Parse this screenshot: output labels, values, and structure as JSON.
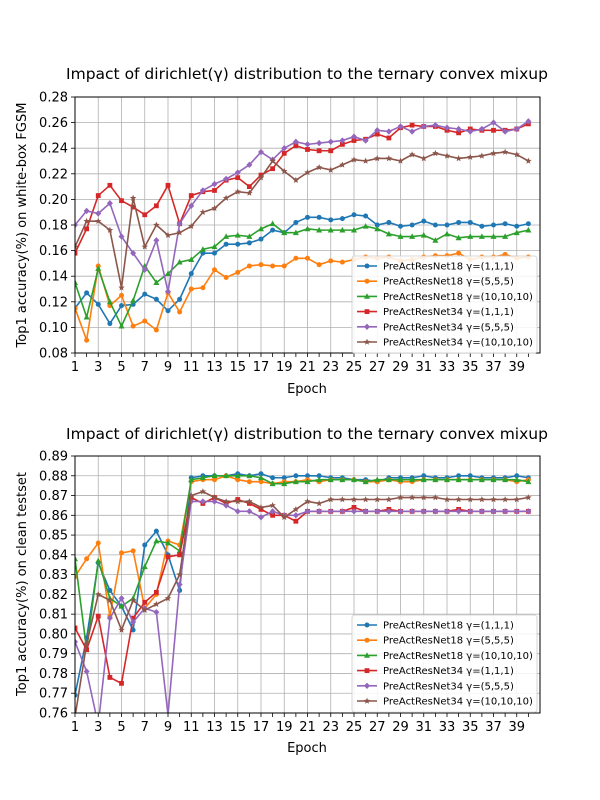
{
  "chart_data": [
    {
      "type": "line",
      "title": "Impact of dirichlet(γ) distribution to the ternary convex mixup",
      "xlabel": "Epoch",
      "ylabel": "Top1 accuracy(%) on white-box FGSM",
      "xlim": [
        1,
        41
      ],
      "ylim": [
        0.08,
        0.28
      ],
      "xticks": [
        1,
        3,
        5,
        7,
        9,
        11,
        13,
        15,
        17,
        19,
        21,
        23,
        25,
        27,
        29,
        31,
        33,
        35,
        37,
        39
      ],
      "yticks": [
        0.08,
        0.1,
        0.12,
        0.14,
        0.16,
        0.18,
        0.2,
        0.22,
        0.24,
        0.26,
        0.28
      ],
      "ytick_labels": [
        "0.08",
        "0.10",
        "0.12",
        "0.14",
        "0.16",
        "0.18",
        "0.20",
        "0.22",
        "0.24",
        "0.26",
        "0.28"
      ],
      "grid": true,
      "legend_position": "lower-right",
      "x": [
        1,
        2,
        3,
        4,
        5,
        6,
        7,
        8,
        9,
        10,
        11,
        12,
        13,
        14,
        15,
        16,
        17,
        18,
        19,
        20,
        21,
        22,
        23,
        24,
        25,
        26,
        27,
        28,
        29,
        30,
        31,
        32,
        33,
        34,
        35,
        36,
        37,
        38,
        39,
        40
      ],
      "series": [
        {
          "name": "PreActResNet18 γ=(1,1,1)",
          "color": "#1f77b4",
          "marker": "circle",
          "values": [
            0.115,
            0.127,
            0.118,
            0.103,
            0.117,
            0.118,
            0.126,
            0.122,
            0.113,
            0.122,
            0.142,
            0.158,
            0.158,
            0.165,
            0.165,
            0.166,
            0.169,
            0.176,
            0.174,
            0.182,
            0.186,
            0.186,
            0.184,
            0.185,
            0.188,
            0.187,
            0.18,
            0.182,
            0.179,
            0.18,
            0.183,
            0.18,
            0.18,
            0.182,
            0.182,
            0.179,
            0.18,
            0.181,
            0.179,
            0.181
          ]
        },
        {
          "name": "PreActResNet18 γ=(5,5,5)",
          "color": "#ff7f0e",
          "marker": "circle",
          "values": [
            0.115,
            0.09,
            0.148,
            0.117,
            0.125,
            0.101,
            0.105,
            0.098,
            0.127,
            0.112,
            0.13,
            0.131,
            0.145,
            0.139,
            0.143,
            0.148,
            0.149,
            0.148,
            0.148,
            0.154,
            0.154,
            0.149,
            0.152,
            0.151,
            0.153,
            0.155,
            0.154,
            0.155,
            0.152,
            0.153,
            0.155,
            0.156,
            0.156,
            0.158,
            0.153,
            0.155,
            0.155,
            0.157,
            0.154,
            0.155
          ]
        },
        {
          "name": "PreActResNet18 γ=(10,10,10)",
          "color": "#2ca02c",
          "marker": "triangle",
          "values": [
            0.135,
            0.108,
            0.146,
            0.12,
            0.101,
            0.121,
            0.148,
            0.135,
            0.142,
            0.151,
            0.153,
            0.161,
            0.163,
            0.171,
            0.172,
            0.171,
            0.177,
            0.181,
            0.174,
            0.174,
            0.177,
            0.176,
            0.176,
            0.176,
            0.176,
            0.179,
            0.177,
            0.173,
            0.171,
            0.171,
            0.172,
            0.168,
            0.173,
            0.17,
            0.171,
            0.171,
            0.171,
            0.171,
            0.174,
            0.176
          ]
        },
        {
          "name": "PreActResNet34 γ=(1,1,1)",
          "color": "#d62728",
          "marker": "square",
          "values": [
            0.158,
            0.177,
            0.203,
            0.211,
            0.199,
            0.194,
            0.188,
            0.195,
            0.211,
            0.181,
            0.203,
            0.206,
            0.207,
            0.215,
            0.217,
            0.21,
            0.219,
            0.224,
            0.236,
            0.242,
            0.239,
            0.238,
            0.238,
            0.243,
            0.246,
            0.247,
            0.251,
            0.248,
            0.256,
            0.258,
            0.257,
            0.257,
            0.254,
            0.252,
            0.255,
            0.254,
            0.254,
            0.254,
            0.255,
            0.259
          ]
        },
        {
          "name": "PreActResNet34 γ=(5,5,5)",
          "color": "#9467bd",
          "marker": "diamond",
          "values": [
            0.18,
            0.191,
            0.189,
            0.197,
            0.171,
            0.158,
            0.145,
            0.168,
            0.128,
            0.181,
            0.195,
            0.207,
            0.212,
            0.216,
            0.221,
            0.227,
            0.237,
            0.231,
            0.24,
            0.245,
            0.243,
            0.244,
            0.245,
            0.246,
            0.249,
            0.246,
            0.254,
            0.253,
            0.257,
            0.253,
            0.257,
            0.258,
            0.256,
            0.255,
            0.253,
            0.255,
            0.26,
            0.253,
            0.255,
            0.261
          ]
        },
        {
          "name": "PreActResNet34 γ=(10,10,10)",
          "color": "#8c564b",
          "marker": "star",
          "values": [
            0.163,
            0.183,
            0.183,
            0.176,
            0.131,
            0.201,
            0.163,
            0.18,
            0.172,
            0.174,
            0.179,
            0.19,
            0.193,
            0.201,
            0.206,
            0.205,
            0.217,
            0.23,
            0.222,
            0.215,
            0.221,
            0.225,
            0.223,
            0.227,
            0.231,
            0.23,
            0.232,
            0.232,
            0.23,
            0.235,
            0.232,
            0.236,
            0.234,
            0.232,
            0.233,
            0.234,
            0.236,
            0.237,
            0.235,
            0.23
          ]
        }
      ]
    },
    {
      "type": "line",
      "title": "Impact of dirichlet(γ) distribution to the ternary convex mixup",
      "xlabel": "Epoch",
      "ylabel": "Top1 accuracy(%) on clean testset",
      "xlim": [
        1,
        41
      ],
      "ylim": [
        0.76,
        0.89
      ],
      "xticks": [
        1,
        3,
        5,
        7,
        9,
        11,
        13,
        15,
        17,
        19,
        21,
        23,
        25,
        27,
        29,
        31,
        33,
        35,
        37,
        39
      ],
      "yticks": [
        0.76,
        0.77,
        0.78,
        0.79,
        0.8,
        0.81,
        0.82,
        0.83,
        0.84,
        0.85,
        0.86,
        0.87,
        0.88,
        0.89
      ],
      "ytick_labels": [
        "0.76",
        "0.77",
        "0.78",
        "0.79",
        "0.80",
        "0.81",
        "0.82",
        "0.83",
        "0.84",
        "0.85",
        "0.86",
        "0.87",
        "0.88",
        "0.89"
      ],
      "grid": true,
      "legend_position": "lower-right",
      "x": [
        1,
        2,
        3,
        4,
        5,
        6,
        7,
        8,
        9,
        10,
        11,
        12,
        13,
        14,
        15,
        16,
        17,
        18,
        19,
        20,
        21,
        22,
        23,
        24,
        25,
        26,
        27,
        28,
        29,
        30,
        31,
        32,
        33,
        34,
        35,
        36,
        37,
        38,
        39,
        40
      ],
      "series": [
        {
          "name": "PreActResNet18 γ=(1,1,1)",
          "color": "#1f77b4",
          "marker": "circle",
          "values": [
            0.769,
            0.798,
            0.836,
            0.822,
            0.814,
            0.802,
            0.845,
            0.852,
            0.84,
            0.822,
            0.879,
            0.88,
            0.88,
            0.88,
            0.881,
            0.88,
            0.881,
            0.879,
            0.879,
            0.88,
            0.88,
            0.88,
            0.879,
            0.879,
            0.878,
            0.878,
            0.877,
            0.879,
            0.879,
            0.879,
            0.88,
            0.879,
            0.879,
            0.88,
            0.88,
            0.879,
            0.879,
            0.879,
            0.88,
            0.879
          ]
        },
        {
          "name": "PreActResNet18 γ=(5,5,5)",
          "color": "#ff7f0e",
          "marker": "circle",
          "values": [
            0.829,
            0.838,
            0.846,
            0.809,
            0.841,
            0.842,
            0.813,
            0.82,
            0.847,
            0.845,
            0.877,
            0.878,
            0.878,
            0.88,
            0.878,
            0.877,
            0.877,
            0.876,
            0.877,
            0.877,
            0.878,
            0.877,
            0.878,
            0.878,
            0.878,
            0.877,
            0.877,
            0.878,
            0.877,
            0.877,
            0.878,
            0.878,
            0.878,
            0.878,
            0.878,
            0.878,
            0.878,
            0.878,
            0.877,
            0.878
          ]
        },
        {
          "name": "PreActResNet18 γ=(10,10,10)",
          "color": "#2ca02c",
          "marker": "triangle",
          "values": [
            0.838,
            0.792,
            0.837,
            0.818,
            0.814,
            0.818,
            0.834,
            0.847,
            0.846,
            0.842,
            0.878,
            0.879,
            0.88,
            0.88,
            0.88,
            0.88,
            0.879,
            0.876,
            0.876,
            0.877,
            0.877,
            0.878,
            0.878,
            0.878,
            0.878,
            0.877,
            0.878,
            0.878,
            0.878,
            0.878,
            0.878,
            0.878,
            0.878,
            0.878,
            0.878,
            0.878,
            0.878,
            0.878,
            0.878,
            0.877
          ]
        },
        {
          "name": "PreActResNet34 γ=(1,1,1)",
          "color": "#d62728",
          "marker": "square",
          "values": [
            0.803,
            0.792,
            0.809,
            0.778,
            0.775,
            0.808,
            0.816,
            0.821,
            0.839,
            0.84,
            0.869,
            0.866,
            0.869,
            0.866,
            0.868,
            0.866,
            0.863,
            0.86,
            0.86,
            0.857,
            0.862,
            0.862,
            0.862,
            0.862,
            0.864,
            0.862,
            0.862,
            0.863,
            0.862,
            0.862,
            0.862,
            0.862,
            0.862,
            0.863,
            0.862,
            0.862,
            0.862,
            0.862,
            0.862,
            0.862
          ]
        },
        {
          "name": "PreActResNet34 γ=(5,5,5)",
          "color": "#9467bd",
          "marker": "diamond",
          "values": [
            0.796,
            0.781,
            0.754,
            0.808,
            0.818,
            0.806,
            0.813,
            0.811,
            0.759,
            0.825,
            0.867,
            0.867,
            0.867,
            0.865,
            0.862,
            0.862,
            0.859,
            0.862,
            0.86,
            0.86,
            0.862,
            0.862,
            0.862,
            0.862,
            0.862,
            0.862,
            0.862,
            0.862,
            0.862,
            0.862,
            0.862,
            0.862,
            0.862,
            0.862,
            0.862,
            0.862,
            0.862,
            0.862,
            0.862,
            0.862
          ]
        },
        {
          "name": "PreActResNet34 γ=(10,10,10)",
          "color": "#8c564b",
          "marker": "star",
          "values": [
            0.758,
            0.795,
            0.82,
            0.817,
            0.802,
            0.817,
            0.812,
            0.815,
            0.818,
            0.83,
            0.87,
            0.872,
            0.869,
            0.867,
            0.867,
            0.867,
            0.864,
            0.865,
            0.859,
            0.863,
            0.867,
            0.866,
            0.868,
            0.868,
            0.868,
            0.868,
            0.868,
            0.868,
            0.869,
            0.869,
            0.869,
            0.869,
            0.868,
            0.868,
            0.868,
            0.868,
            0.868,
            0.868,
            0.868,
            0.869
          ]
        }
      ]
    }
  ]
}
